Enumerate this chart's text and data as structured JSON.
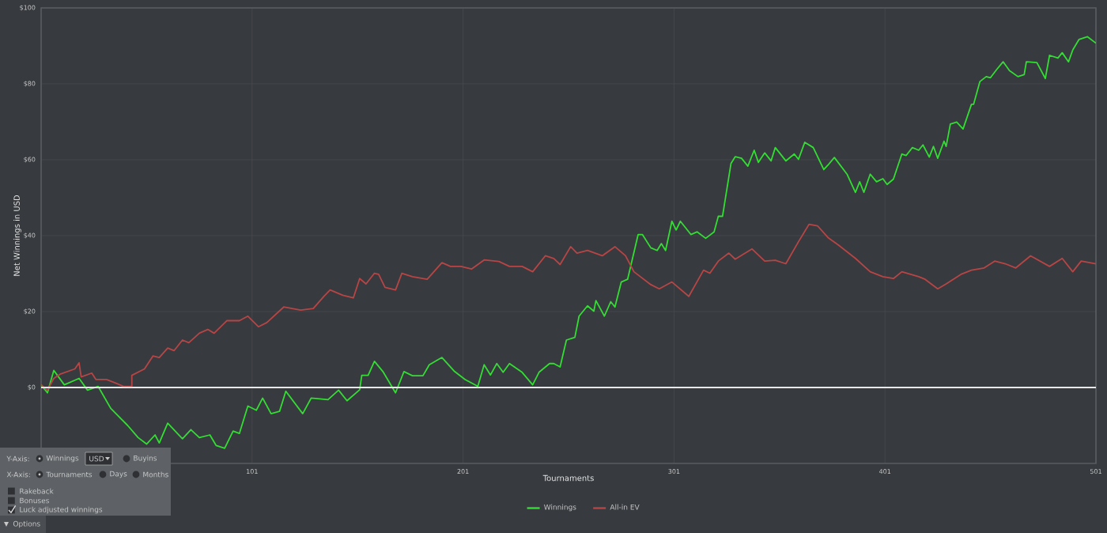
{
  "chart_data": {
    "type": "line",
    "xlabel": "Tournaments",
    "ylabel": "Net Winnings in USD",
    "xlim": [
      1,
      501
    ],
    "ylim": [
      -20,
      100
    ],
    "xticks": [
      101,
      201,
      301,
      401,
      501
    ],
    "yticks": [
      {
        "value": 0,
        "label": "$0"
      },
      {
        "value": 20,
        "label": "$20"
      },
      {
        "value": 40,
        "label": "$40"
      },
      {
        "value": 60,
        "label": "$60"
      },
      {
        "value": 80,
        "label": "$80"
      },
      {
        "value": 100,
        "label": "$100"
      }
    ],
    "grid": true,
    "legend": "bottom",
    "ref_lines": [
      {
        "axis": "y",
        "value": 0,
        "color": "#e8e8e8"
      }
    ],
    "series": [
      {
        "name": "Winnings",
        "color": "#33dd33",
        "x": [
          1,
          4,
          7,
          12,
          19,
          23,
          28,
          34,
          42,
          47,
          51,
          55,
          57,
          61,
          68,
          72,
          76,
          81,
          84,
          88,
          92,
          95,
          99,
          103,
          106,
          110,
          114,
          117,
          125,
          129,
          137,
          142,
          146,
          152,
          153,
          156,
          159,
          163,
          169,
          173,
          177,
          182,
          185,
          191,
          197,
          202,
          208,
          211,
          214,
          217,
          220,
          223,
          229,
          234,
          237,
          242,
          244,
          247,
          250,
          254,
          256,
          260,
          263,
          264,
          268,
          271,
          273,
          276,
          279,
          284,
          286,
          290,
          293,
          295,
          297,
          300,
          302,
          304,
          309,
          312,
          316,
          320,
          322,
          324,
          328,
          330,
          333,
          336,
          339,
          341,
          344,
          347,
          349,
          354,
          358,
          360,
          363,
          367,
          372,
          374,
          377,
          383,
          387,
          389,
          391,
          394,
          397,
          400,
          402,
          405,
          409,
          411,
          414,
          417,
          419,
          422,
          424,
          426,
          429,
          430,
          432,
          435,
          438,
          442,
          443,
          446,
          449,
          451,
          454,
          457,
          460,
          464,
          467,
          468,
          473,
          477,
          479,
          483,
          485,
          488,
          490,
          493,
          497,
          501
        ],
        "values": [
          0.7,
          -1.4,
          4.5,
          0.7,
          2.4,
          -0.7,
          0.3,
          -5.5,
          -10,
          -13.2,
          -14.9,
          -12.5,
          -14.6,
          -9.4,
          -13.5,
          -11.1,
          -13.2,
          -12.5,
          -15.3,
          -16,
          -11.5,
          -12.1,
          -4.9,
          -6,
          -2.8,
          -6.9,
          -6.3,
          -1,
          -6.9,
          -2.8,
          -3.2,
          -0.7,
          -3.5,
          -0.6,
          3.2,
          3.2,
          6.9,
          4.2,
          -1.4,
          4.2,
          3.1,
          3.1,
          6,
          7.9,
          4.2,
          2.1,
          0.3,
          6,
          3.3,
          6.3,
          4,
          6.3,
          4,
          0.7,
          4,
          6.3,
          6.3,
          5.4,
          12.5,
          13.2,
          18.8,
          21.5,
          20.1,
          22.9,
          18.8,
          22.6,
          21.2,
          27.8,
          28.5,
          40.3,
          40.3,
          36.8,
          36.1,
          37.9,
          36.1,
          43.8,
          41.5,
          43.8,
          40.3,
          41,
          39.3,
          41,
          45.1,
          45.1,
          59,
          60.8,
          60.4,
          58.3,
          62.5,
          59.3,
          61.8,
          59.7,
          63.2,
          59.7,
          61.5,
          60.1,
          64.6,
          63.2,
          57.4,
          58.6,
          60.6,
          56.2,
          51.4,
          54.2,
          51.4,
          56.2,
          54.2,
          55,
          53.5,
          54.9,
          61.5,
          61.1,
          63.2,
          62.5,
          63.9,
          60.7,
          63.5,
          60.4,
          64.9,
          63.5,
          69.4,
          69.9,
          68.1,
          74.6,
          74.6,
          80.6,
          81.9,
          81.6,
          83.8,
          85.8,
          83.5,
          81.9,
          82.4,
          85.8,
          85.6,
          81.4,
          87.5,
          86.8,
          88.2,
          85.8,
          88.9,
          91.7,
          92.4,
          90.7
        ]
      },
      {
        "name": "All-in EV",
        "color": "#b84545",
        "x": [
          1,
          4,
          7,
          10,
          17,
          19,
          20,
          25,
          27,
          32,
          37,
          40,
          44,
          44,
          50,
          54,
          57,
          61,
          64,
          68,
          71,
          76,
          80,
          83,
          89,
          95,
          99,
          104,
          108,
          116,
          124,
          130,
          135,
          138,
          144,
          149,
          152,
          155,
          159,
          161,
          164,
          169,
          172,
          177,
          184,
          191,
          195,
          200,
          205,
          211,
          218,
          223,
          229,
          234,
          240,
          244,
          247,
          252,
          255,
          260,
          267,
          273,
          278,
          282,
          290,
          294,
          300,
          308,
          315,
          318,
          322,
          327,
          330,
          338,
          344,
          349,
          354,
          360,
          365,
          369,
          374,
          379,
          387,
          394,
          400,
          405,
          409,
          417,
          420,
          426,
          430,
          437,
          442,
          448,
          453,
          458,
          463,
          470,
          479,
          485,
          490,
          494,
          501
        ],
        "values": [
          0.7,
          -0.7,
          2.4,
          3.5,
          4.9,
          6.5,
          2.8,
          3.8,
          2.1,
          2.1,
          1,
          0.3,
          0.3,
          3.2,
          4.9,
          8.3,
          7.9,
          10.4,
          9.7,
          12.5,
          11.8,
          14.3,
          15.3,
          14.3,
          17.6,
          17.6,
          18.8,
          16,
          17.1,
          21.2,
          20.4,
          20.8,
          24,
          25.7,
          24.3,
          23.6,
          28.7,
          27.3,
          30.1,
          29.8,
          26.4,
          25.7,
          30.1,
          29.2,
          28.5,
          32.9,
          31.9,
          31.9,
          31.2,
          33.6,
          33.2,
          31.9,
          31.9,
          30.5,
          34.7,
          34,
          32.4,
          37.1,
          35.4,
          36.1,
          34.7,
          37.1,
          34.7,
          30.5,
          27.1,
          26,
          27.8,
          24,
          30.9,
          30.1,
          33.3,
          35.4,
          33.8,
          36.5,
          33.3,
          33.5,
          32.6,
          38.4,
          43,
          42.6,
          39.5,
          37.5,
          34,
          30.5,
          29.2,
          28.7,
          30.5,
          29.2,
          28.5,
          26,
          27.3,
          29.8,
          30.9,
          31.5,
          33.3,
          32.6,
          31.5,
          34.7,
          31.9,
          34,
          30.5,
          33.3,
          32.6
        ]
      }
    ],
    "annotations": [
      "Y-Axis:",
      "Winnings",
      "USD",
      "Buyins",
      "X-Axis:",
      "Tournaments",
      "Days",
      "Months",
      "Rakeback",
      "Bonuses",
      "Luck adjusted winnings",
      "Options"
    ]
  }
}
